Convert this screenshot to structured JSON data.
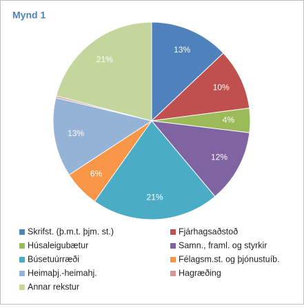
{
  "chart_data": {
    "type": "pie",
    "title": "Mynd 1",
    "categories": [
      "Skrifst. (þ.m.t. þjm. st.)",
      "Fjárhagsaðstoð",
      "Húsaleigubætur",
      "Samn., framl. og styrkir",
      "Búsetuúrræði",
      "Félagsm.st. og þjónustuíb.",
      "Heimaþj.-heimahj.",
      "Hagræðing",
      "Annar rekstur"
    ],
    "values": [
      13,
      10,
      4,
      12,
      21,
      6,
      13,
      0.3,
      21
    ],
    "value_labels": [
      "13%",
      "10%",
      "4%",
      "12%",
      "21%",
      "6%",
      "13%",
      null,
      "21%"
    ],
    "colors": [
      "#4f81bd",
      "#c0504d",
      "#9bbb59",
      "#8064a2",
      "#4bacc6",
      "#f79646",
      "#95b3d7",
      "#d99694",
      "#c3d69b"
    ]
  }
}
